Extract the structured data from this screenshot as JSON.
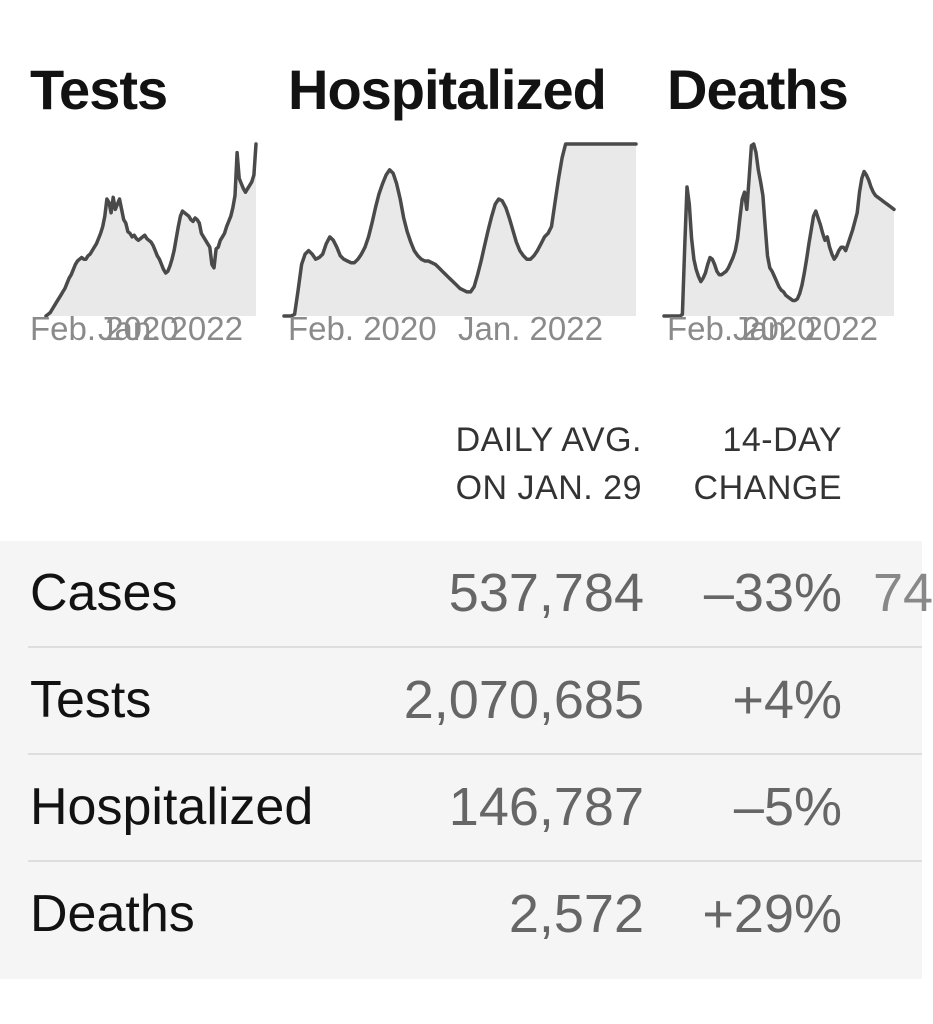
{
  "charts": {
    "tests": {
      "title": "Tests",
      "x_start_label": "Feb. 2020",
      "x_end_label": "Jan. 2022"
    },
    "hospitalized": {
      "title": "Hospitalized",
      "x_start_label": "Feb. 2020",
      "x_end_label": "Jan. 2022"
    },
    "deaths": {
      "title": "Deaths",
      "x_start_label": "Feb. 2020",
      "x_end_label": "Jan. 2022"
    }
  },
  "table": {
    "headers": {
      "daily_avg_line1": "DAILY AVG.",
      "daily_avg_line2": "ON JAN. 29",
      "change_line1": "14-DAY",
      "change_line2": "CHANGE"
    },
    "rows": [
      {
        "label": "Cases",
        "daily_avg": "537,784",
        "change": "–33%",
        "extra": "74"
      },
      {
        "label": "Tests",
        "daily_avg": "2,070,685",
        "change": "+4%"
      },
      {
        "label": "Hospitalized",
        "daily_avg": "146,787",
        "change": "–5%"
      },
      {
        "label": "Deaths",
        "daily_avg": "2,572",
        "change": "+29%"
      }
    ]
  },
  "colors": {
    "line": "#4a4a4a",
    "fill": "#e9e9e9",
    "table_bg": "#f5f5f5",
    "muted_text": "#666666"
  },
  "chart_data": [
    {
      "type": "area",
      "title": "Tests",
      "x": [
        0,
        1,
        2,
        3,
        4,
        5,
        6,
        7,
        8,
        9,
        10,
        11,
        12,
        13,
        14,
        15,
        16,
        17,
        18,
        19,
        20,
        21,
        22,
        23,
        24,
        25,
        26,
        27,
        28,
        29,
        30,
        31,
        32,
        33,
        34,
        35,
        36,
        37,
        38,
        39,
        40,
        41,
        42,
        43,
        44,
        45,
        46,
        47,
        48,
        49,
        50,
        51,
        52,
        53,
        54,
        55,
        56,
        57,
        58,
        59,
        60,
        61,
        62,
        63,
        64,
        65,
        66,
        67,
        68,
        69,
        70,
        71,
        72,
        73,
        74,
        75,
        76,
        77,
        78,
        79,
        80,
        81,
        82,
        83,
        84,
        85,
        86,
        87,
        88,
        89,
        90,
        91,
        92,
        93,
        94,
        95,
        96,
        97,
        98,
        99,
        100
      ],
      "values": [
        0,
        1,
        2,
        4,
        6,
        8,
        10,
        12,
        14,
        16,
        19,
        22,
        24,
        27,
        30,
        32,
        33,
        34,
        33,
        33,
        35,
        36,
        38,
        40,
        42,
        45,
        48,
        52,
        58,
        68,
        66,
        60,
        69,
        62,
        65,
        68,
        62,
        56,
        54,
        49,
        48,
        46,
        47,
        45,
        44,
        45,
        46,
        47,
        45,
        44,
        43,
        41,
        38,
        35,
        33,
        30,
        27,
        25,
        26,
        29,
        33,
        38,
        45,
        52,
        58,
        61,
        60,
        59,
        58,
        56,
        55,
        57,
        56,
        54,
        48,
        46,
        44,
        42,
        40,
        30,
        28,
        39,
        40,
        44,
        46,
        48,
        52,
        55,
        58,
        63,
        70,
        95,
        80,
        77,
        74,
        72,
        74,
        76,
        78,
        82,
        100
      ]
    },
    {
      "type": "area",
      "title": "Hospitalized",
      "x": [
        0,
        1,
        2,
        3,
        4,
        5,
        6,
        7,
        8,
        9,
        10,
        11,
        12,
        13,
        14,
        15,
        16,
        17,
        18,
        19,
        20,
        21,
        22,
        23,
        24,
        25,
        26,
        27,
        28,
        29,
        30,
        31,
        32,
        33,
        34,
        35,
        36,
        37,
        38,
        39,
        40,
        41,
        42,
        43,
        44,
        45,
        46,
        47,
        48,
        49,
        50,
        51,
        52,
        53,
        54,
        55,
        56,
        57,
        58,
        59,
        60,
        61,
        62,
        63,
        64,
        65,
        66,
        67,
        68,
        69,
        70,
        71,
        72,
        73,
        74,
        75,
        76,
        77,
        78,
        79,
        80,
        81,
        82,
        83,
        84,
        85,
        86,
        87,
        88,
        89,
        90,
        91,
        92,
        93,
        94,
        95,
        96,
        97,
        98,
        99,
        100
      ],
      "values": [
        0,
        0,
        0,
        1,
        15,
        30,
        36,
        38,
        36,
        33,
        34,
        36,
        42,
        46,
        44,
        40,
        35,
        33,
        32,
        31,
        31,
        33,
        36,
        40,
        46,
        54,
        63,
        71,
        77,
        82,
        85,
        83,
        77,
        68,
        57,
        49,
        43,
        38,
        35,
        33,
        32,
        32,
        31,
        30,
        28,
        26,
        24,
        22,
        20,
        18,
        16,
        15,
        14,
        14,
        17,
        24,
        32,
        41,
        50,
        58,
        65,
        68,
        67,
        63,
        57,
        50,
        43,
        38,
        35,
        33,
        33,
        35,
        38,
        42,
        46,
        48,
        52,
        66,
        80,
        92,
        100,
        100,
        100,
        100,
        100,
        100,
        100,
        100,
        100,
        100,
        100,
        100,
        100,
        100,
        100,
        100,
        100,
        100,
        100,
        100,
        100
      ]
    },
    {
      "type": "area",
      "title": "Deaths",
      "x": [
        0,
        1,
        2,
        3,
        4,
        5,
        6,
        7,
        8,
        9,
        10,
        11,
        12,
        13,
        14,
        15,
        16,
        17,
        18,
        19,
        20,
        21,
        22,
        23,
        24,
        25,
        26,
        27,
        28,
        29,
        30,
        31,
        32,
        33,
        34,
        35,
        36,
        37,
        38,
        39,
        40,
        41,
        42,
        43,
        44,
        45,
        46,
        47,
        48,
        49,
        50,
        51,
        52,
        53,
        54,
        55,
        56,
        57,
        58,
        59,
        60,
        61,
        62,
        63,
        64,
        65,
        66,
        67,
        68,
        69,
        70,
        71,
        72,
        73,
        74,
        75,
        76,
        77,
        78,
        79,
        80,
        81,
        82,
        83,
        84,
        85,
        86,
        87,
        88,
        89,
        90,
        91,
        92,
        93,
        94,
        95,
        96,
        97,
        98,
        99,
        100
      ],
      "values": [
        0,
        0,
        0,
        0,
        0,
        0,
        0,
        0,
        1,
        40,
        75,
        65,
        45,
        33,
        27,
        23,
        20,
        22,
        25,
        30,
        34,
        33,
        30,
        26,
        24,
        24,
        25,
        26,
        28,
        31,
        34,
        38,
        45,
        57,
        68,
        72,
        62,
        80,
        99,
        100,
        95,
        85,
        78,
        70,
        52,
        35,
        28,
        26,
        23,
        20,
        17,
        15,
        14,
        12,
        11,
        10,
        9,
        9,
        10,
        13,
        18,
        25,
        33,
        42,
        50,
        58,
        61,
        57,
        53,
        48,
        44,
        46,
        40,
        36,
        33,
        35,
        38,
        40,
        40,
        38,
        42,
        46,
        50,
        55,
        60,
        72,
        80,
        84,
        82,
        79,
        75,
        72,
        70,
        69,
        68,
        67,
        66,
        65,
        64,
        63,
        62
      ]
    }
  ]
}
